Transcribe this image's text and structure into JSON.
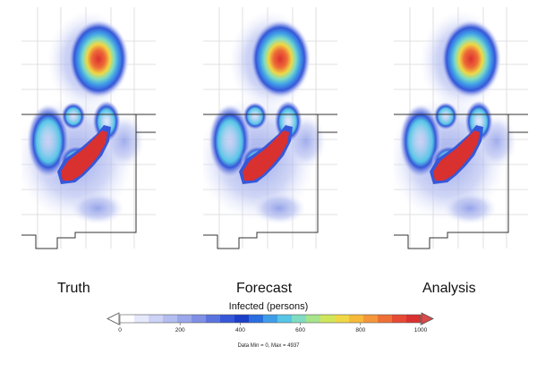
{
  "panels": [
    {
      "label": "Truth"
    },
    {
      "label": "Forecast"
    },
    {
      "label": "Analysis"
    }
  ],
  "colorbar": {
    "title": "Infected (persons)",
    "ticks": [
      "0",
      "200",
      "400",
      "600",
      "800",
      "1000"
    ],
    "tick_values": [
      0,
      200,
      400,
      600,
      800,
      1000
    ],
    "min": 0,
    "max": 1000,
    "colors": [
      "#ffffff",
      "#e6e9fb",
      "#cdd3f6",
      "#b3bdf0",
      "#9aa7ea",
      "#7f90e5",
      "#5a74df",
      "#3657d8",
      "#1c3fc8",
      "#2a6ee0",
      "#3f9de8",
      "#56c5e6",
      "#7fdcc2",
      "#a7e48c",
      "#d0e65a",
      "#efd845",
      "#f7b93a",
      "#f5963a",
      "#ee7036",
      "#e54a35",
      "#d93030"
    ]
  },
  "stats_label": "Data Min = 0, Max = 4937"
}
